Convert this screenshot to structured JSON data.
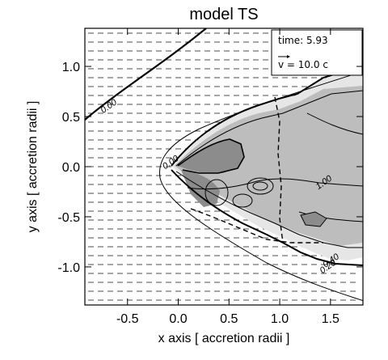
{
  "chart_data": {
    "type": "contour",
    "title": "model TS",
    "xlabel": "x axis [ accretion radii ]",
    "ylabel": "y axis [ accretion radii ]",
    "xlim": [
      -0.92,
      1.82
    ],
    "ylim": [
      -1.38,
      1.38
    ],
    "x_ticks": [
      -0.5,
      0.0,
      0.5,
      1.0,
      1.5
    ],
    "y_ticks": [
      -1.0,
      -0.5,
      0.0,
      0.5,
      1.0
    ],
    "x_tick_labels": [
      "-0.5",
      "0.0",
      "0.5",
      "1.0",
      "1.5"
    ],
    "y_tick_labels": [
      "-1.0",
      "-0.5",
      "0.0",
      "0.5",
      "1.0"
    ],
    "contour_labels": [
      {
        "text": "0.00",
        "x": -0.67,
        "y": 0.58
      },
      {
        "text": "0.00",
        "x": -0.06,
        "y": 0.02
      },
      {
        "text": "1.00",
        "x": 1.45,
        "y": -0.18
      },
      {
        "text": "0.40",
        "x": 1.52,
        "y": -0.96
      },
      {
        "text": "0.20",
        "x": 1.49,
        "y": -1.02
      }
    ],
    "annotations": {
      "time_text": "time: 5.93",
      "velocity_key_text": "v = 10.0 c"
    },
    "colors": {
      "contour_line": "#000000",
      "shade_light": "#e6e6e6",
      "shade_medium": "#bdbdbd",
      "shade_dark": "#8c8c8c"
    }
  }
}
